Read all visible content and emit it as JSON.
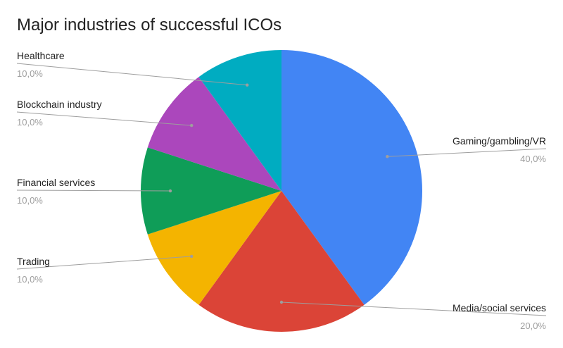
{
  "chart_data": {
    "type": "pie",
    "title": "Major industries of successful ICOs",
    "slices": [
      {
        "label": "Gaming/gambling/VR",
        "value": 40.0,
        "value_label": "40,0%",
        "color": "#4285f4"
      },
      {
        "label": "Media/social services",
        "value": 20.0,
        "value_label": "20,0%",
        "color": "#db4437"
      },
      {
        "label": "Trading",
        "value": 10.0,
        "value_label": "10,0%",
        "color": "#f4b400"
      },
      {
        "label": "Financial services",
        "value": 10.0,
        "value_label": "10,0%",
        "color": "#0f9d58"
      },
      {
        "label": "Blockchain industry",
        "value": 10.0,
        "value_label": "10,0%",
        "color": "#ab47bc"
      },
      {
        "label": "Healthcare",
        "value": 10.0,
        "value_label": "10,0%",
        "color": "#00acc1"
      }
    ],
    "start": "12 o'clock",
    "direction": "clockwise",
    "labels": "outside with leader lines",
    "legend": "none"
  }
}
